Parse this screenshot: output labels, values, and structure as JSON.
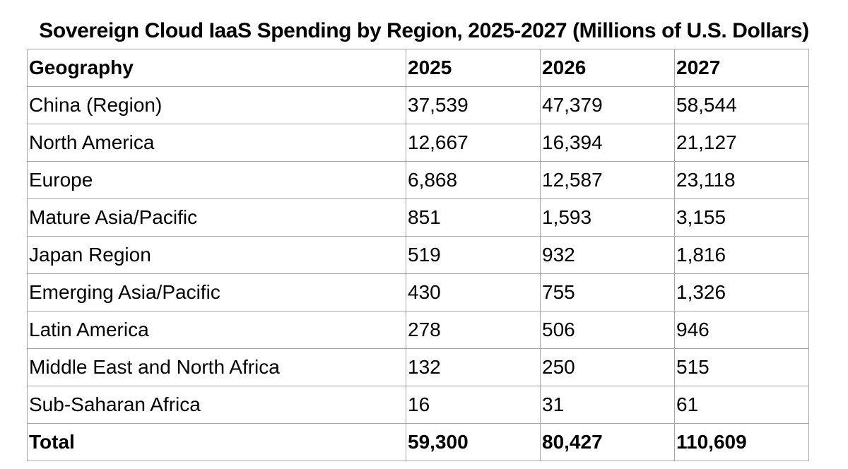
{
  "title": "Sovereign Cloud IaaS Spending by Region, 2025-2027 (Millions of U.S. Dollars)",
  "table": {
    "headers": [
      "Geography",
      "2025",
      "2026",
      "2027"
    ],
    "rows": [
      [
        "China (Region)",
        "37,539",
        "47,379",
        "58,544"
      ],
      [
        "North America",
        "12,667",
        "16,394",
        "21,127"
      ],
      [
        "Europe",
        "6,868",
        "12,587",
        "23,118"
      ],
      [
        "Mature Asia/Pacific",
        "851",
        "1,593",
        "3,155"
      ],
      [
        "Japan Region",
        "519",
        "932",
        "1,816"
      ],
      [
        "Emerging Asia/Pacific",
        "430",
        "755",
        "1,326"
      ],
      [
        "Latin America",
        "278",
        "506",
        "946"
      ],
      [
        "Middle East and North Africa",
        "132",
        "250",
        "515"
      ],
      [
        "Sub-Saharan Africa",
        "16",
        "31",
        "61"
      ]
    ],
    "total": [
      "Total",
      "59,300",
      "80,427",
      "110,609"
    ]
  },
  "colors": {
    "text": "#000000",
    "border": "#a6a6a6",
    "background": "#ffffff"
  }
}
